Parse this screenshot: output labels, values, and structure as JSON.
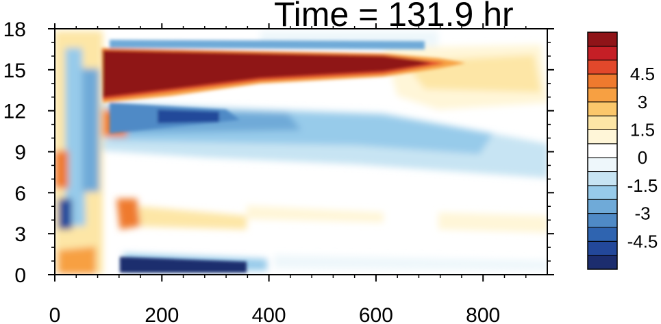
{
  "chart_data": {
    "type": "heatmap",
    "title": "Time = 131.9 hr",
    "xlabel": "",
    "ylabel": "",
    "xlim": [
      0,
      920
    ],
    "ylim": [
      0,
      18
    ],
    "x_ticks": [
      0,
      200,
      400,
      600,
      800
    ],
    "x_tick_labels": [
      "0",
      "200",
      "400",
      "600",
      "800"
    ],
    "y_ticks": [
      0,
      3,
      6,
      9,
      12,
      15,
      18
    ],
    "y_tick_labels": [
      "0",
      "3",
      "6",
      "9",
      "12",
      "15",
      "18"
    ],
    "grid": false,
    "colorbar": {
      "position": "right",
      "levels": [
        -5.25,
        -4.5,
        -3.75,
        -3,
        -2.25,
        -1.5,
        -0.75,
        0,
        0.75,
        1.5,
        2.25,
        3,
        3.75,
        4.5,
        5.25
      ],
      "labels": [
        "-4.5",
        "-3",
        "-1.5",
        "0",
        "1.5",
        "3",
        "4.5"
      ],
      "label_values": [
        -4.5,
        -3,
        -1.5,
        0,
        1.5,
        3,
        4.5
      ],
      "colors": [
        "#1c2d6e",
        "#23489a",
        "#2f64b0",
        "#4f8ac6",
        "#6faad8",
        "#97cbea",
        "#c7e4f3",
        "#eef7fb",
        "#ffffff",
        "#fff6d8",
        "#fde6a6",
        "#fbc76b",
        "#f7a042",
        "#ef7a2e",
        "#e2482b",
        "#c51f26",
        "#8f1418"
      ]
    },
    "features": [
      {
        "name": "upper strong positive jet",
        "x_range": [
          90,
          700
        ],
        "y_center": 14.9,
        "max_value": 6
      },
      {
        "name": "negative band below jet",
        "x_range": [
          90,
          800
        ],
        "y_center": 11.5,
        "min_value": -5
      },
      {
        "name": "weak positive region",
        "x_range": [
          580,
          900
        ],
        "y_center": 13.5,
        "max_value": 1
      }
    ]
  }
}
